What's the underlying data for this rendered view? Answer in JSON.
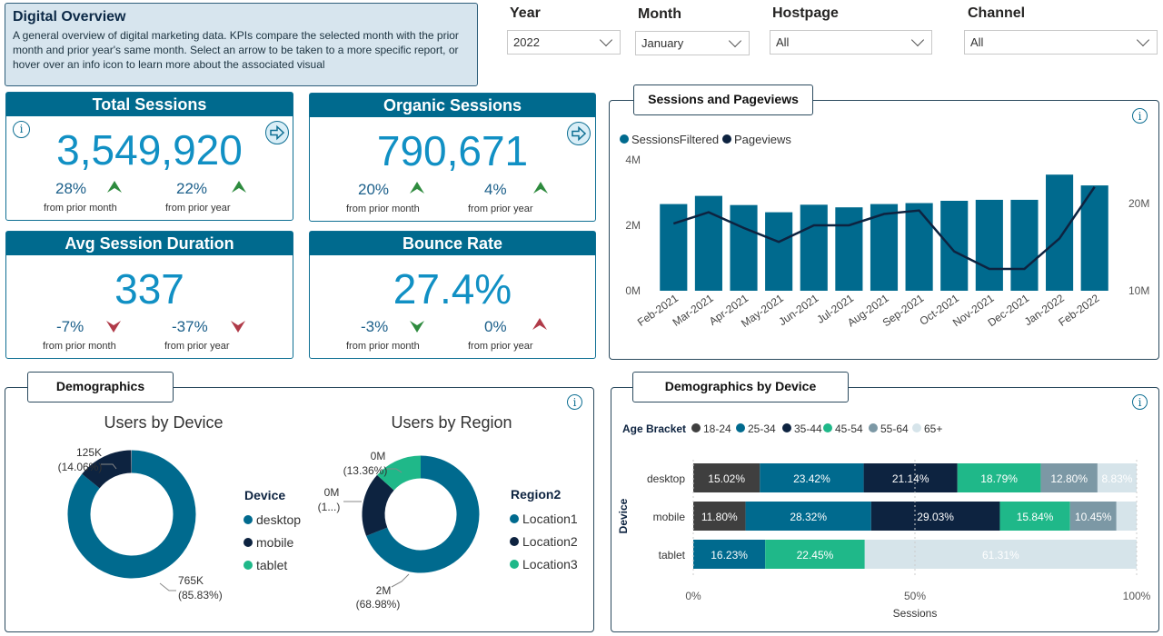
{
  "header": {
    "title": "Digital Overview",
    "description": "A general overview of digital marketing data. KPIs compare the selected month with the prior month and prior year's same month. Select an arrow to be taken to a more specific report, or hover over an info icon to learn more about the associated visual"
  },
  "filters": [
    {
      "label": "Year",
      "value": "2022"
    },
    {
      "label": "Month",
      "value": "January"
    },
    {
      "label": "Hostpage",
      "value": "All"
    },
    {
      "label": "Channel",
      "value": "All"
    }
  ],
  "kpis": {
    "total_sessions": {
      "title": "Total Sessions",
      "value": "3,549,920",
      "month_pct": "28%",
      "year_pct": "22%",
      "month_dir": "up",
      "year_dir": "up",
      "month_sub": "from prior month",
      "year_sub": "from prior year"
    },
    "organic_sessions": {
      "title": "Organic Sessions",
      "value": "790,671",
      "month_pct": "20%",
      "year_pct": "4%",
      "month_dir": "up",
      "year_dir": "up",
      "month_sub": "from prior month",
      "year_sub": "from prior year"
    },
    "avg_session_duration": {
      "title": "Avg Session Duration",
      "value": "337",
      "month_pct": "-7%",
      "year_pct": "-37%",
      "month_dir": "down-bad",
      "year_dir": "down-bad",
      "month_sub": "from prior month",
      "year_sub": "from prior year"
    },
    "bounce_rate": {
      "title": "Bounce Rate",
      "value": "27.4%",
      "month_pct": "-3%",
      "year_pct": "0%",
      "month_dir": "down-good",
      "year_dir": "up-bad",
      "month_sub": "from prior month",
      "year_sub": "from prior year"
    }
  },
  "colors": {
    "primary": "#006a8e",
    "dark": "#0d2340",
    "teal": "#1fb889",
    "gray": "#7c98a5",
    "light": "#d6e4ea",
    "charcoal": "#3f3f3f",
    "up_good": "#2e8b3e",
    "down_bad": "#b03a48"
  },
  "sessions_panel": {
    "title": "Sessions and Pageviews",
    "chart_data": {
      "type": "bar",
      "categories": [
        "Feb-2021",
        "Mar-2021",
        "Apr-2021",
        "May-2021",
        "Jun-2021",
        "Jul-2021",
        "Aug-2021",
        "Sep-2021",
        "Oct-2021",
        "Nov-2021",
        "Dec-2021",
        "Jan-2022",
        "Feb-2022"
      ],
      "series": [
        {
          "name": "SessionsFiltered",
          "type": "bar",
          "axis": "left",
          "values": [
            2.65,
            2.9,
            2.62,
            2.4,
            2.63,
            2.55,
            2.65,
            2.68,
            2.75,
            2.78,
            2.78,
            3.55,
            3.22
          ],
          "unit": "M"
        },
        {
          "name": "Pageviews",
          "type": "line",
          "axis": "right",
          "values": [
            17.7,
            19.0,
            17.2,
            15.6,
            17.5,
            17.5,
            18.8,
            19.2,
            14.5,
            12.5,
            12.5,
            16.0,
            21.9
          ],
          "unit": "M"
        }
      ],
      "left_ticks": [
        "0M",
        "2M",
        "4M"
      ],
      "right_ticks": [
        "10M",
        "20M"
      ],
      "left_range": [
        0,
        4
      ],
      "right_range": [
        10,
        25
      ],
      "legend_position": "top-left"
    }
  },
  "demographics_panel": {
    "title": "Demographics",
    "device_chart": {
      "title": "Users by Device",
      "legend_title": "Device",
      "chart_data": {
        "type": "pie",
        "slices": [
          {
            "name": "desktop",
            "value": 85.83,
            "label": "765K",
            "pct": "(85.83%)"
          },
          {
            "name": "mobile",
            "value": 14.06,
            "label": "125K",
            "pct": "(14.06%)"
          },
          {
            "name": "tablet",
            "value": 0.11,
            "label": "",
            "pct": ""
          }
        ]
      }
    },
    "region_chart": {
      "title": "Users by Region",
      "legend_title": "Region2",
      "chart_data": {
        "type": "pie",
        "slices": [
          {
            "name": "Location1",
            "value": 68.98,
            "label": "2M",
            "pct": "(68.98%)"
          },
          {
            "name": "Location2",
            "value": 17.66,
            "label": "0M",
            "pct": "(1...)"
          },
          {
            "name": "Location3",
            "value": 13.36,
            "label": "0M",
            "pct": "(13.36%)"
          }
        ]
      }
    }
  },
  "device_demo_panel": {
    "title": "Demographics by Device",
    "legend_title": "Age Bracket",
    "y_axis_title": "Device",
    "x_axis_title": "Sessions",
    "chart_data": {
      "type": "bar",
      "orientation": "horizontal-stacked-100",
      "categories": [
        "desktop",
        "mobile",
        "tablet"
      ],
      "series": [
        {
          "name": "18-24",
          "values": [
            15.02,
            11.8,
            0
          ]
        },
        {
          "name": "25-34",
          "values": [
            23.42,
            28.32,
            16.23
          ]
        },
        {
          "name": "35-44",
          "values": [
            21.14,
            29.03,
            0
          ]
        },
        {
          "name": "45-54",
          "values": [
            18.79,
            15.84,
            22.45
          ]
        },
        {
          "name": "55-64",
          "values": [
            12.8,
            10.45,
            0
          ]
        },
        {
          "name": "65+",
          "values": [
            8.83,
            4.56,
            61.31
          ]
        }
      ],
      "value_labels": [
        [
          "15.02%",
          "23.42%",
          "21.14%",
          "18.79%",
          "12.80%",
          "8.83%"
        ],
        [
          "11.80%",
          "28.32%",
          "29.03%",
          "15.84%",
          "10.45%",
          ""
        ],
        [
          "",
          "16.23%",
          "",
          "22.45%",
          "",
          "61.31%"
        ]
      ],
      "x_ticks": [
        "0%",
        "50%",
        "100%"
      ],
      "xlim": [
        0,
        100
      ]
    }
  }
}
